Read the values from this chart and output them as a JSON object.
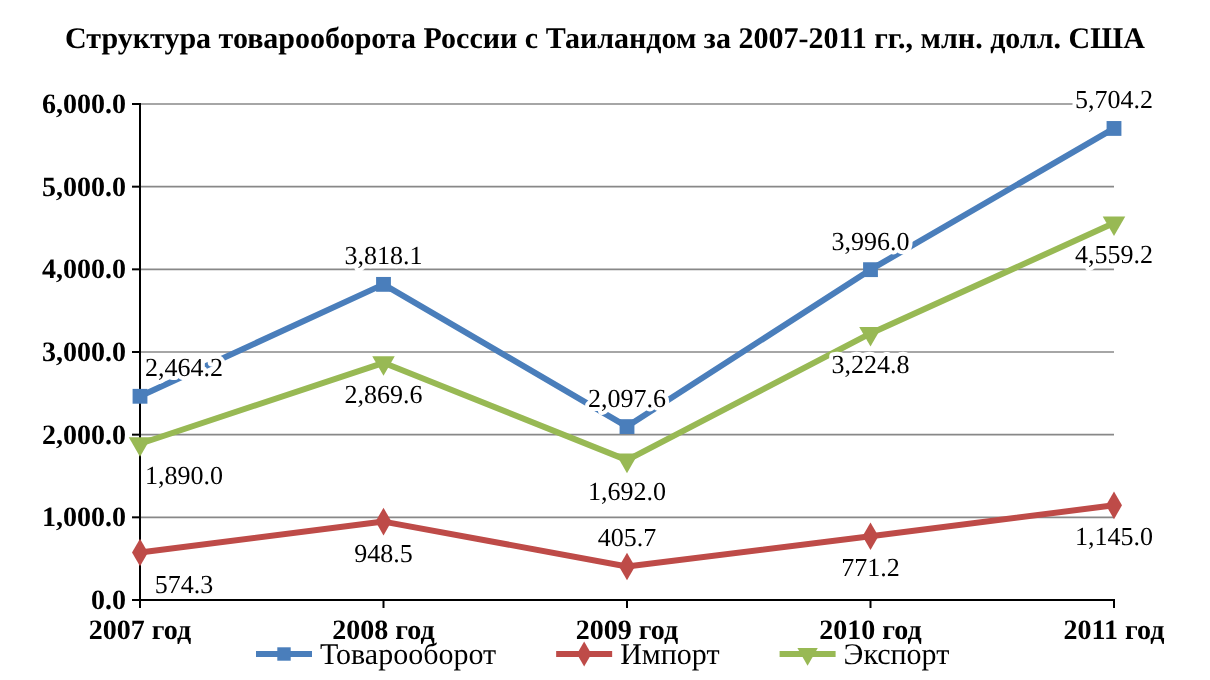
{
  "chart_data": {
    "type": "line",
    "title": "Структура товарооборота России с Таиландом за 2007-2011 гг., млн. долл. США",
    "categories": [
      "2007 год",
      "2008 год",
      "2009 год",
      "2010 год",
      "2011 год"
    ],
    "series": [
      {
        "name": "Товарооборот",
        "color": "#4a7ebb",
        "marker": "square",
        "values": [
          2464.2,
          3818.1,
          2097.6,
          3996.0,
          5704.2
        ],
        "value_labels": [
          "2,464.2",
          "3,818.1",
          "2,097.6",
          "3,996.0",
          "5,704.2"
        ]
      },
      {
        "name": "Импорт",
        "color": "#be4b48",
        "marker": "diamond",
        "values": [
          574.3,
          948.5,
          405.7,
          771.2,
          1145.0
        ],
        "value_labels": [
          "574.3",
          "948.5",
          "405.7",
          "771.2",
          "1,145.0"
        ]
      },
      {
        "name": "Экспорт",
        "color": "#98b954",
        "marker": "triangle",
        "values": [
          1890.0,
          2869.6,
          1692.0,
          3224.8,
          4559.2
        ],
        "value_labels": [
          "1,890.0",
          "2,869.6",
          "1,692.0",
          "3,224.8",
          "4,559.2"
        ]
      }
    ],
    "ylim": [
      0,
      6000
    ],
    "yticks": [
      {
        "value": 0,
        "label": "0.0"
      },
      {
        "value": 1000,
        "label": "1,000.0"
      },
      {
        "value": 2000,
        "label": "2,000.0"
      },
      {
        "value": 3000,
        "label": "3,000.0"
      },
      {
        "value": 4000,
        "label": "4,000.0"
      },
      {
        "value": 5000,
        "label": "5,000.0"
      },
      {
        "value": 6000,
        "label": "6,000.0"
      }
    ],
    "grid": "y",
    "legend": "bottom",
    "line_style": "solid"
  }
}
